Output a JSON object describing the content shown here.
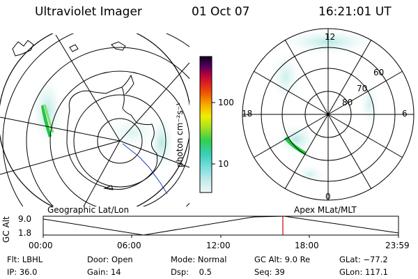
{
  "header": {
    "instrument": "Ultraviolet Imager",
    "date": "01 Oct 07",
    "time": "16:21:01 UT"
  },
  "colorbar": {
    "label": "photon cm⁻²s⁻¹",
    "ticks": [
      "100",
      "10"
    ]
  },
  "geo_map": {
    "caption": "Geographic Lat/Lon",
    "colors": {
      "continent": "#000000",
      "grid": "#000000",
      "aurora_core": "#22c640",
      "aurora_edge": "#aee6e0"
    }
  },
  "polar_map": {
    "caption": "Apex MLat/MLT",
    "mlt_labels": [
      "12",
      "18",
      "6",
      "0"
    ],
    "mlat_labels": [
      "60",
      "70",
      "80"
    ]
  },
  "timeline": {
    "ylabel": "GC Alt",
    "y_ticks": [
      "9.0",
      "1.8"
    ],
    "x_ticks": [
      "00:00",
      "06:00",
      "12:00",
      "18:00",
      "23:59"
    ],
    "cursor_color": "#cc0000"
  },
  "status": [
    {
      "label": "Flt:",
      "value": "LBHL"
    },
    {
      "label": "IP:",
      "value": "36.0"
    },
    {
      "label": "Door:",
      "value": "Open"
    },
    {
      "label": "Gain:",
      "value": "14"
    },
    {
      "label": "Mode:",
      "value": "Normal"
    },
    {
      "label": "Dsp:",
      "value": "0.5"
    },
    {
      "label": "GC Alt:",
      "value": "9.0 Re"
    },
    {
      "label": "Seq:",
      "value": "39"
    },
    {
      "label": "GLat:",
      "value": "−77.2"
    },
    {
      "label": "GLon:",
      "value": "117.1"
    }
  ]
}
